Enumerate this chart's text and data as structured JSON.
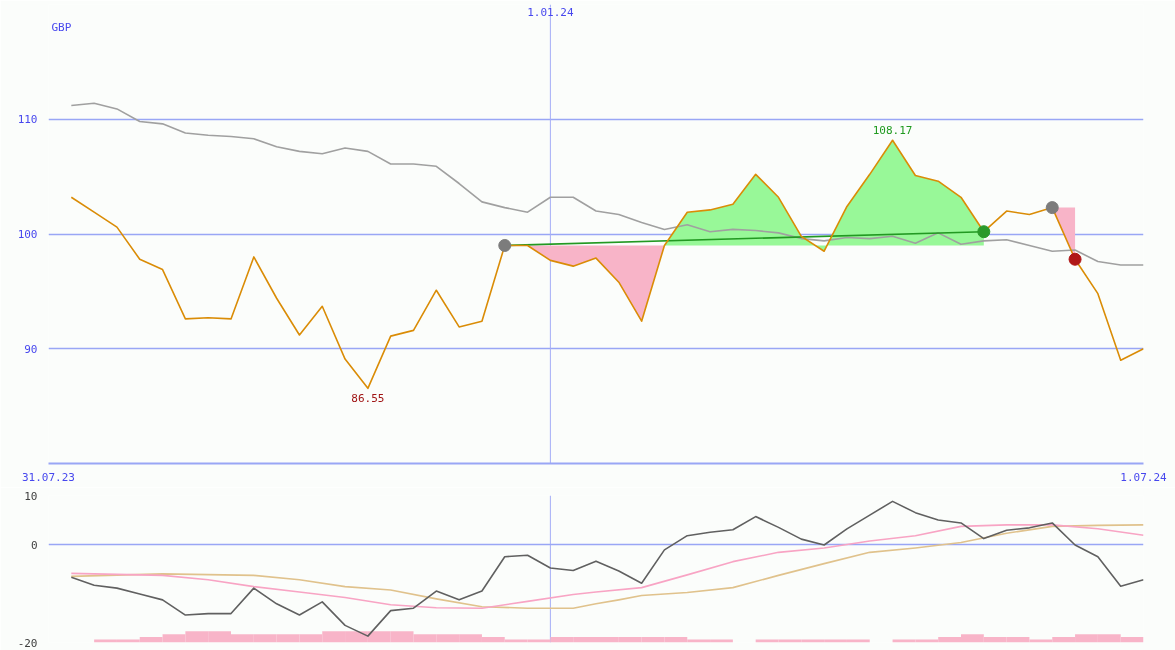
{
  "chart_data": [
    {
      "type": "line",
      "ylabel": "GBP",
      "x": [
        "2023-08-07",
        "2023-08-14",
        "2023-08-21",
        "2023-08-28",
        "2023-09-04",
        "2023-09-11",
        "2023-09-18",
        "2023-09-25",
        "2023-10-02",
        "2023-10-09",
        "2023-10-16",
        "2023-10-23",
        "2023-10-30",
        "2023-11-06",
        "2023-11-13",
        "2023-11-20",
        "2023-11-27",
        "2023-12-04",
        "2023-12-11",
        "2023-12-18",
        "2023-12-25",
        "2024-01-01",
        "2024-01-08",
        "2024-01-15",
        "2024-01-22",
        "2024-01-29",
        "2024-02-05",
        "2024-02-12",
        "2024-02-19",
        "2024-02-26",
        "2024-03-04",
        "2024-03-11",
        "2024-03-18",
        "2024-03-25",
        "2024-04-01",
        "2024-04-08",
        "2024-04-15",
        "2024-04-22",
        "2024-04-29",
        "2024-05-06",
        "2024-05-13",
        "2024-05-20",
        "2024-05-27",
        "2024-06-03",
        "2024-06-10",
        "2024-06-17",
        "2024-06-24",
        "2024-07-01"
      ],
      "xlim": [
        "2023-07-31",
        "2024-07-01"
      ],
      "xticks": [
        {
          "value": "2023-07-31",
          "label": "31.07.23"
        },
        {
          "value": "2024-07-01",
          "label": "1.07.24"
        }
      ],
      "ylim": [
        80,
        120
      ],
      "yticks": [
        90,
        100,
        110
      ],
      "grid": "y",
      "ref_lines": [
        {
          "axis": "x",
          "value": "2024-01-01",
          "label": "1.01.24",
          "color": "#a4aef6"
        }
      ],
      "annotations": [
        {
          "text": "108.17",
          "x": "2024-04-15",
          "y": 108.17
        },
        {
          "text": "86.55",
          "x": "2023-11-06",
          "y": 86.55
        }
      ],
      "series": [
        {
          "type": "area",
          "color": "#98f898",
          "x": [
            "2024-02-05",
            "2024-02-12",
            "2024-02-19",
            "2024-02-26",
            "2024-03-04",
            "2024-03-11",
            "2024-03-18",
            "2024-03-25",
            "2024-04-01",
            "2024-04-08",
            "2024-04-15",
            "2024-04-22",
            "2024-04-29",
            "2024-05-06",
            "2024-05-13"
          ],
          "values": [
            99.0,
            101.9,
            102.1,
            102.6,
            105.2,
            103.2,
            99.8,
            98.5,
            102.4,
            105.2,
            108.17,
            105.1,
            104.6,
            103.2,
            100.2
          ]
        },
        {
          "type": "area",
          "color": "#f8b4c8",
          "x": [
            "2023-12-18",
            "2023-12-25",
            "2024-01-01",
            "2024-01-08",
            "2024-01-15",
            "2024-01-22",
            "2024-01-29",
            "2024-02-05"
          ],
          "values": [
            99.0,
            99.0,
            97.7,
            97.2,
            97.9,
            95.8,
            92.4,
            99.0
          ]
        },
        {
          "type": "area",
          "color": "#f8b4c8",
          "x": [
            "2024-06-03",
            "2024-06-10"
          ],
          "values": [
            102.3,
            97.8
          ]
        },
        {
          "color": "#a0a0a0",
          "values": [
            111.2,
            111.4,
            110.9,
            109.8,
            109.6,
            108.8,
            108.6,
            108.5,
            108.3,
            107.6,
            107.2,
            107.0,
            107.5,
            107.2,
            106.1,
            106.1,
            105.9,
            104.4,
            102.8,
            102.3,
            101.9,
            103.2,
            103.2,
            102.0,
            101.7,
            101.0,
            100.4,
            100.8,
            100.2,
            100.4,
            100.3,
            100.1,
            99.6,
            99.4,
            99.7,
            99.6,
            99.8,
            99.2,
            100.1,
            99.1,
            99.4,
            99.5,
            99.0,
            98.5,
            98.6,
            97.6,
            97.3,
            97.3
          ]
        },
        {
          "color": "#229922",
          "x": [
            "2023-12-18",
            "2024-05-13"
          ],
          "values": [
            99.0,
            100.2
          ]
        },
        {
          "color": "#da8c06",
          "values": [
            103.2,
            101.9,
            100.6,
            97.8,
            96.9,
            92.6,
            92.7,
            92.6,
            98.0,
            94.4,
            91.2,
            93.7,
            89.1,
            86.55,
            91.1,
            91.6,
            95.1,
            91.9,
            92.4,
            99.0,
            99.0,
            97.7,
            97.2,
            97.9,
            95.8,
            92.4,
            99.0,
            101.9,
            102.1,
            102.6,
            105.2,
            103.2,
            99.8,
            98.5,
            102.4,
            105.2,
            108.17,
            105.1,
            104.6,
            103.2,
            100.2,
            102.0,
            101.7,
            102.3,
            97.8,
            94.8,
            89.0,
            90.0
          ]
        },
        {
          "type": "scatter",
          "marker": "circle",
          "x": [
            "2023-12-18",
            "2024-05-13",
            "2024-06-03",
            "2024-06-10"
          ],
          "values": [
            99.0,
            100.2,
            102.3,
            97.8
          ],
          "colors": [
            "#7c7c7c",
            "#2a9a2a",
            "#7c7c7c",
            "#b01818"
          ]
        }
      ]
    },
    {
      "type": "line",
      "x": [
        "2023-08-07",
        "2023-08-14",
        "2023-08-21",
        "2023-08-28",
        "2023-09-04",
        "2023-09-11",
        "2023-09-18",
        "2023-09-25",
        "2023-10-02",
        "2023-10-09",
        "2023-10-16",
        "2023-10-23",
        "2023-10-30",
        "2023-11-06",
        "2023-11-13",
        "2023-11-20",
        "2023-11-27",
        "2023-12-04",
        "2023-12-11",
        "2023-12-18",
        "2023-12-25",
        "2024-01-01",
        "2024-01-08",
        "2024-01-15",
        "2024-01-22",
        "2024-01-29",
        "2024-02-05",
        "2024-02-12",
        "2024-02-19",
        "2024-02-26",
        "2024-03-04",
        "2024-03-11",
        "2024-03-18",
        "2024-03-25",
        "2024-04-01",
        "2024-04-08",
        "2024-04-15",
        "2024-04-22",
        "2024-04-29",
        "2024-05-06",
        "2024-05-13",
        "2024-05-20",
        "2024-05-27",
        "2024-06-03",
        "2024-06-10",
        "2024-06-17",
        "2024-06-24",
        "2024-07-01"
      ],
      "xlim": [
        "2023-07-31",
        "2024-07-01"
      ],
      "ylim": [
        -20,
        10
      ],
      "yticks": [
        -20,
        0,
        10
      ],
      "tick_labels": "y",
      "ref_lines": [
        {
          "axis": "x",
          "value": "2024-01-01",
          "color": "#a4aef6"
        },
        {
          "axis": "y",
          "value": 0,
          "color": "#99a6f5"
        }
      ],
      "series": [
        {
          "type": "bar",
          "color": "#f8b4c8",
          "x": [
            "2023-08-17T12:00",
            "2023-08-24T12:00",
            "2023-08-31T12:00",
            "2023-09-07T12:00",
            "2023-09-14T12:00",
            "2023-09-21T12:00",
            "2023-09-28T12:00",
            "2023-10-05T12:00",
            "2023-10-12T12:00",
            "2023-10-19T12:00",
            "2023-10-26T12:00",
            "2023-11-02T12:00",
            "2023-11-09T12:00",
            "2023-11-16T12:00",
            "2023-11-23T12:00",
            "2023-11-30T12:00",
            "2023-12-07T12:00",
            "2023-12-14T12:00",
            "2023-12-21T12:00",
            "2023-12-28T12:00",
            "2024-01-04T12:00",
            "2024-01-11T12:00",
            "2024-01-18T12:00",
            "2024-01-25T12:00",
            "2024-02-01T12:00",
            "2024-02-08T12:00",
            "2024-02-15T12:00",
            "2024-02-22T12:00",
            "2024-03-07T12:00",
            "2024-03-14T12:00",
            "2024-03-21T12:00",
            "2024-03-28T12:00",
            "2024-04-04T12:00",
            "2024-04-18T12:00",
            "2024-04-25T12:00",
            "2024-05-02T12:00",
            "2024-05-09T12:00",
            "2024-05-16T12:00",
            "2024-05-23T12:00",
            "2024-05-30T12:00",
            "2024-06-06T12:00",
            "2024-06-13T12:00",
            "2024-06-20T12:00",
            "2024-06-27T12:00"
          ],
          "base": [
            -20,
            -20,
            -20,
            -20,
            -20,
            -20,
            -20,
            -20,
            -20,
            -20,
            -20,
            -20,
            -20,
            -20,
            -20,
            -20,
            -20,
            -20,
            -20,
            -20,
            -20,
            -20,
            -20,
            -20,
            -20,
            -20,
            -20,
            -20,
            -20,
            -20,
            -20,
            -20,
            -20,
            -20,
            -20,
            -20,
            -20,
            -20,
            -20,
            -20,
            -20,
            -20,
            -20,
            -20
          ],
          "values": [
            0.6,
            0.6,
            1.1,
            1.7,
            2.3,
            2.3,
            1.7,
            1.7,
            1.7,
            1.7,
            2.3,
            2.3,
            2.3,
            2.3,
            1.7,
            1.7,
            1.7,
            1.1,
            0.6,
            0.6,
            1.1,
            1.1,
            1.1,
            1.1,
            1.1,
            1.1,
            0.6,
            0.6,
            0.6,
            0.6,
            0.6,
            0.6,
            0.6,
            0.6,
            0.6,
            1.1,
            1.7,
            1.1,
            1.1,
            0.6,
            1.1,
            1.7,
            1.7,
            1.1
          ]
        },
        {
          "color": "#e0c28c",
          "x": [
            "2023-08-07",
            "2023-09-04",
            "2023-10-02",
            "2023-10-16",
            "2023-10-30",
            "2023-11-13",
            "2023-11-27",
            "2023-12-11",
            "2023-12-25",
            "2024-01-08",
            "2024-01-15",
            "2024-01-22",
            "2024-01-29",
            "2024-02-12",
            "2024-02-26",
            "2024-03-11",
            "2024-03-25",
            "2024-04-08",
            "2024-04-22",
            "2024-05-06",
            "2024-05-20",
            "2024-06-03",
            "2024-06-17",
            "2024-07-01"
          ],
          "values": [
            -6.5,
            -6.0,
            -6.3,
            -7.2,
            -8.6,
            -9.3,
            -11.1,
            -12.7,
            -13.0,
            -13.0,
            -12.1,
            -11.3,
            -10.4,
            -9.8,
            -8.8,
            -6.3,
            -3.9,
            -1.6,
            -0.7,
            0.4,
            2.3,
            3.7,
            3.9,
            4.0
          ]
        },
        {
          "color": "#f8a4c4",
          "x": [
            "2023-08-07",
            "2023-08-21",
            "2023-09-04",
            "2023-09-18",
            "2023-10-02",
            "2023-10-16",
            "2023-10-30",
            "2023-11-13",
            "2023-11-27",
            "2023-12-11",
            "2023-12-25",
            "2024-01-08",
            "2024-01-15",
            "2024-01-29",
            "2024-02-12",
            "2024-02-26",
            "2024-03-11",
            "2024-03-25",
            "2024-04-08",
            "2024-04-22",
            "2024-05-06",
            "2024-05-20",
            "2024-06-03",
            "2024-06-17",
            "2024-07-01"
          ],
          "values": [
            -5.9,
            -6.1,
            -6.3,
            -7.2,
            -8.6,
            -9.7,
            -10.8,
            -12.3,
            -12.9,
            -13.0,
            -11.6,
            -10.2,
            -9.7,
            -8.8,
            -6.2,
            -3.5,
            -1.6,
            -0.7,
            0.7,
            1.8,
            3.7,
            4.0,
            4.0,
            3.2,
            1.9
          ]
        },
        {
          "color": "#606060",
          "values": [
            -6.7,
            -8.3,
            -8.9,
            -10.1,
            -11.3,
            -14.4,
            -14.1,
            -14.1,
            -8.9,
            -12.1,
            -14.4,
            -11.7,
            -16.5,
            -18.7,
            -13.5,
            -13.0,
            -9.5,
            -11.3,
            -9.5,
            -2.5,
            -2.2,
            -4.8,
            -5.3,
            -3.4,
            -5.4,
            -7.9,
            -1.1,
            1.8,
            2.5,
            3.0,
            5.7,
            3.5,
            1.1,
            -0.1,
            3.2,
            6.0,
            8.8,
            6.5,
            5.0,
            4.4,
            1.2,
            2.9,
            3.4,
            4.4,
            -0.1,
            -2.5,
            -8.5,
            -7.2
          ]
        }
      ]
    }
  ]
}
